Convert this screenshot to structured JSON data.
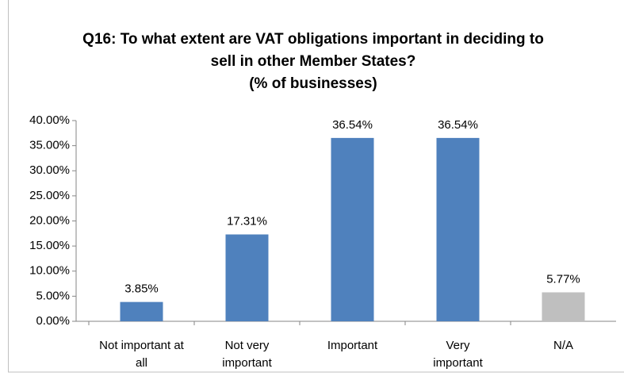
{
  "chart_data": {
    "type": "bar",
    "title": "Q16: To what extent are VAT obligations important in deciding to sell in other Member States?",
    "subtitle": "(% of businesses)",
    "categories": [
      "Not important at all",
      "Not very important",
      "Important",
      "Very important",
      "N/A"
    ],
    "values": [
      3.85,
      17.31,
      36.54,
      36.54,
      5.77
    ],
    "value_labels": [
      "3.85%",
      "17.31%",
      "36.54%",
      "36.54%",
      "5.77%"
    ],
    "colors": [
      "#4f81bd",
      "#4f81bd",
      "#4f81bd",
      "#4f81bd",
      "#bfbfbf"
    ],
    "ylim": [
      0,
      40
    ],
    "yticks": [
      {
        "value": 0,
        "label": "0.00%"
      },
      {
        "value": 5,
        "label": "5.00%"
      },
      {
        "value": 10,
        "label": "10.00%"
      },
      {
        "value": 15,
        "label": "15.00%"
      },
      {
        "value": 20,
        "label": "20.00%"
      },
      {
        "value": 25,
        "label": "25.00%"
      },
      {
        "value": 30,
        "label": "30.00%"
      },
      {
        "value": 35,
        "label": "35.00%"
      },
      {
        "value": 40,
        "label": "40.00%"
      }
    ],
    "grid": false
  }
}
